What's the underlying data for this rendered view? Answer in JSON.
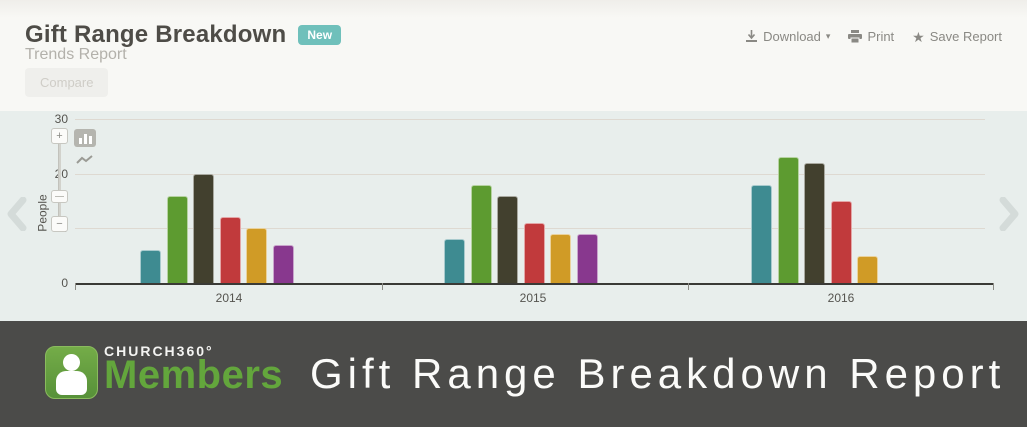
{
  "header": {
    "title": "Gift Range Breakdown",
    "badge": "New",
    "subtitle": "Trends Report",
    "compare_label": "Compare",
    "actions": {
      "download": "Download",
      "print": "Print",
      "save": "Save Report"
    }
  },
  "chart_controls": {
    "zoom_in": "+",
    "zoom_out": "−",
    "bar_type_icon": "bar-chart-icon",
    "line_type_icon": "line-chart-icon"
  },
  "chart_data": {
    "type": "bar",
    "title": "",
    "xlabel": "",
    "ylabel": "People",
    "categories": [
      "2014",
      "2015",
      "2016"
    ],
    "series": [
      {
        "name": "series-teal",
        "color": "#3e8b91",
        "values": [
          6,
          8,
          18
        ]
      },
      {
        "name": "series-green",
        "color": "#5d9b30",
        "values": [
          16,
          18,
          23
        ]
      },
      {
        "name": "series-olive",
        "color": "#42402e",
        "values": [
          20,
          16,
          22
        ]
      },
      {
        "name": "series-red",
        "color": "#c13a3c",
        "values": [
          12,
          11,
          15
        ]
      },
      {
        "name": "series-gold",
        "color": "#d09b26",
        "values": [
          10,
          9,
          5
        ]
      },
      {
        "name": "series-purple",
        "color": "#88388e",
        "values": [
          7,
          9,
          null
        ]
      }
    ],
    "yticks": [
      0,
      10,
      20,
      30
    ],
    "ylim": [
      0,
      30
    ],
    "grid": true,
    "legend": "none"
  },
  "footer": {
    "brand_top": "CHURCH360°",
    "brand_name": "Members",
    "report_title": "Gift Range Breakdown Report"
  },
  "colors": {
    "badge": "#6fc0bb",
    "panel_bg": "#e8eeec",
    "banner_bg": "#4b4b49",
    "brand_green": "#63a63c",
    "axis": "#3a3a36"
  }
}
